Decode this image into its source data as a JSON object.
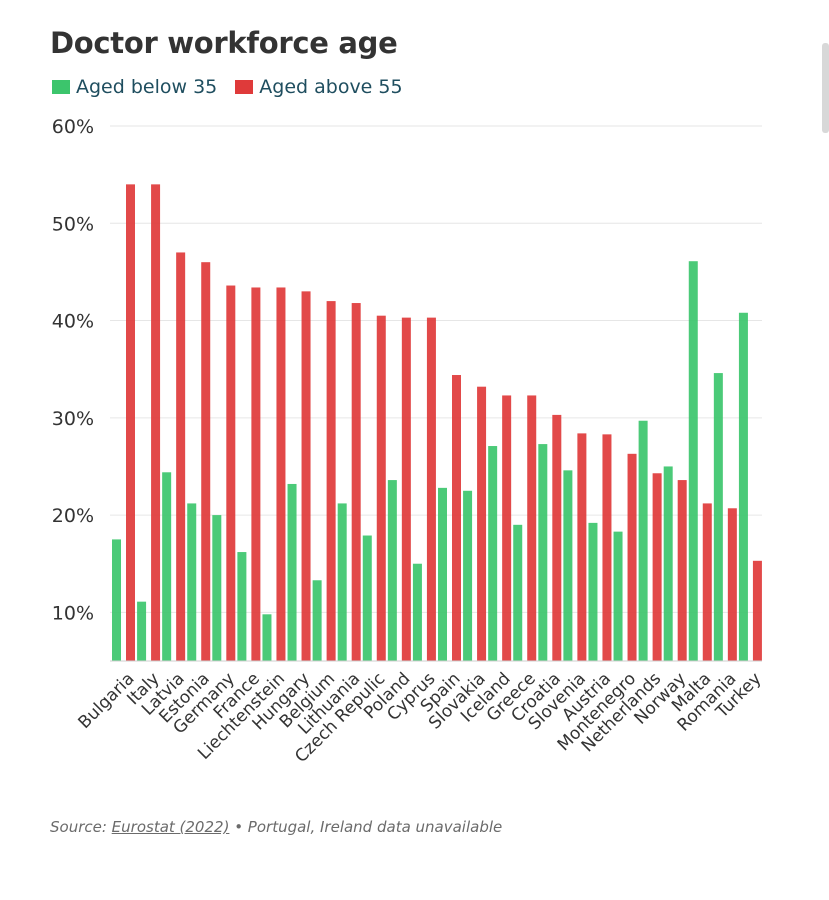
{
  "title": "Doctor workforce age",
  "legend": {
    "below": "Aged below 35",
    "above": "Aged above 55"
  },
  "colors": {
    "below": "#3cc56c",
    "above": "#df3a3a",
    "grid": "#e6e6e6",
    "axis_text": "#333333"
  },
  "source": {
    "prefix": "Source: ",
    "link": "Eurostat (2022)",
    "suffix": " • Portugal, Ireland data unavailable"
  },
  "chart_data": {
    "type": "bar",
    "title": "Doctor workforce age",
    "xlabel": "",
    "ylabel": "",
    "ylim": [
      5,
      60
    ],
    "yticks": [
      10,
      20,
      30,
      40,
      50,
      60
    ],
    "ytick_labels": [
      "10%",
      "20%",
      "30%",
      "40%",
      "50%",
      "60%"
    ],
    "grid": true,
    "legend_position": "top-left",
    "categories": [
      "Bulgaria",
      "Italy",
      "Latvia",
      "Estonia",
      "Germany",
      "France",
      "Liechtenstein",
      "Hungary",
      "Belgium",
      "Lithuania",
      "Czech Repulic",
      "Poland",
      "Cyprus",
      "Spain",
      "Slovakia",
      "Iceland",
      "Greece",
      "Croatia",
      "Slovenia",
      "Austria",
      "Montenegro",
      "Netherlands",
      "Norway",
      "Malta",
      "Romania",
      "Turkey"
    ],
    "series": [
      {
        "name": "Aged below 35",
        "values": [
          17.5,
          11.1,
          24.4,
          21.2,
          20.0,
          16.2,
          9.8,
          23.2,
          13.3,
          21.2,
          17.9,
          23.6,
          15.0,
          22.8,
          22.5,
          27.1,
          19.0,
          27.3,
          24.6,
          19.2,
          18.3,
          29.7,
          25.0,
          46.1,
          34.6,
          40.8
        ]
      },
      {
        "name": "Aged above 55",
        "values": [
          54.0,
          54.0,
          47.0,
          46.0,
          43.6,
          43.4,
          43.4,
          43.0,
          42.0,
          41.8,
          40.5,
          40.3,
          40.3,
          34.4,
          33.2,
          32.3,
          32.3,
          30.3,
          28.4,
          28.3,
          26.3,
          24.3,
          23.6,
          21.2,
          20.7,
          15.3
        ]
      }
    ]
  }
}
